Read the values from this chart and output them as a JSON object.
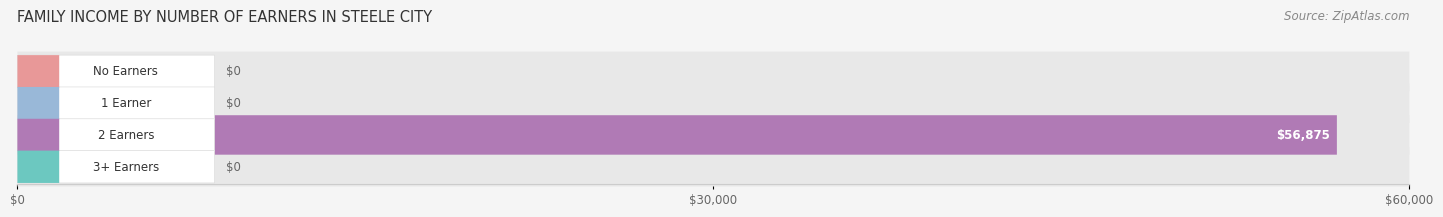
{
  "title": "FAMILY INCOME BY NUMBER OF EARNERS IN STEELE CITY",
  "source": "Source: ZipAtlas.com",
  "categories": [
    "No Earners",
    "1 Earner",
    "2 Earners",
    "3+ Earners"
  ],
  "values": [
    0,
    0,
    56875,
    0
  ],
  "bar_colors": [
    "#e89898",
    "#99b8d8",
    "#b07ab5",
    "#6cc8c0"
  ],
  "xlim_max": 60000,
  "xticks": [
    0,
    30000,
    60000
  ],
  "xtick_labels": [
    "$0",
    "$30,000",
    "$60,000"
  ],
  "bg_color": "#f5f5f5",
  "bar_bg_color": "#e8e8e8",
  "title_fontsize": 10.5,
  "source_fontsize": 8.5,
  "tick_fontsize": 8.5,
  "label_fontsize": 8.5
}
